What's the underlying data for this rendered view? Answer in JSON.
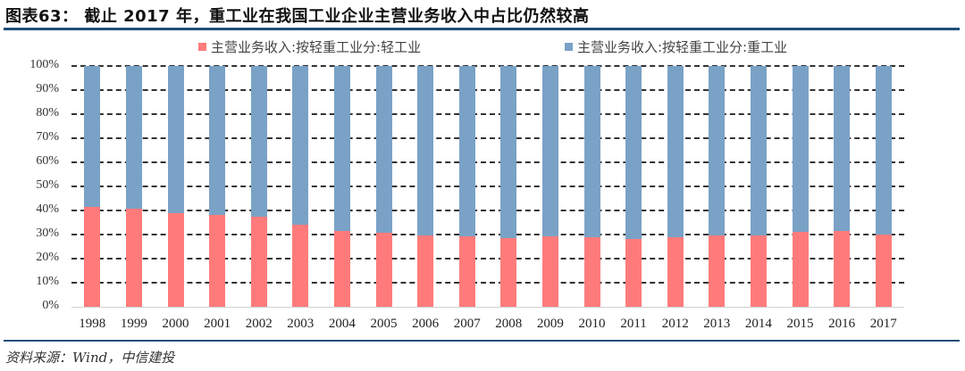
{
  "header": {
    "title": "图表63： 截止 2017 年，重工业在我国工业企业主营业务收入中占比仍然较高"
  },
  "footer": {
    "source": "资料来源：Wind，中信建投"
  },
  "colors": {
    "light_industry": "#ff7b7b",
    "heavy_industry": "#7aa2c6",
    "rule": "#1f4e79",
    "grid": "#333333"
  },
  "legend": [
    {
      "label": "主营业务收入:按轻重工业分:轻工业",
      "color": "#ff7b7b"
    },
    {
      "label": "主营业务收入:按轻重工业分:重工业",
      "color": "#7aa2c6"
    }
  ],
  "axis": {
    "y_ticks": [
      "100%",
      "90%",
      "80%",
      "70%",
      "60%",
      "50%",
      "40%",
      "30%",
      "20%",
      "10%",
      "0%"
    ]
  },
  "chart_data": {
    "type": "bar",
    "stacked": true,
    "percent_stacked": true,
    "title": "截止 2017 年，重工业在我国工业企业主营业务收入中占比仍然较高",
    "xlabel": "",
    "ylabel": "",
    "ylim": [
      0,
      100
    ],
    "y_tick_labels": [
      "0%",
      "10%",
      "20%",
      "30%",
      "40%",
      "50%",
      "60%",
      "70%",
      "80%",
      "90%",
      "100%"
    ],
    "grid": {
      "horizontal": true,
      "style": "dashed"
    },
    "legend_position": "top",
    "categories": [
      "1998",
      "1999",
      "2000",
      "2001",
      "2002",
      "2003",
      "2004",
      "2005",
      "2006",
      "2007",
      "2008",
      "2009",
      "2010",
      "2011",
      "2012",
      "2013",
      "2014",
      "2015",
      "2016",
      "2017"
    ],
    "series": [
      {
        "name": "主营业务收入:按轻重工业分:轻工业",
        "color": "#ff7b7b",
        "values": [
          41.5,
          40.8,
          38.8,
          38.0,
          37.5,
          34.2,
          31.3,
          30.8,
          29.8,
          29.4,
          28.7,
          29.3,
          28.8,
          28.3,
          29.0,
          29.5,
          29.8,
          31.0,
          31.6,
          30.0
        ]
      },
      {
        "name": "主营业务收入:按轻重工业分:重工业",
        "color": "#7aa2c6",
        "values": [
          58.5,
          59.2,
          61.2,
          62.0,
          62.5,
          65.8,
          68.7,
          69.2,
          70.2,
          70.6,
          71.3,
          70.7,
          71.2,
          71.7,
          71.0,
          70.5,
          70.2,
          69.0,
          68.4,
          70.0
        ]
      }
    ],
    "source": "资料来源：Wind，中信建投"
  }
}
